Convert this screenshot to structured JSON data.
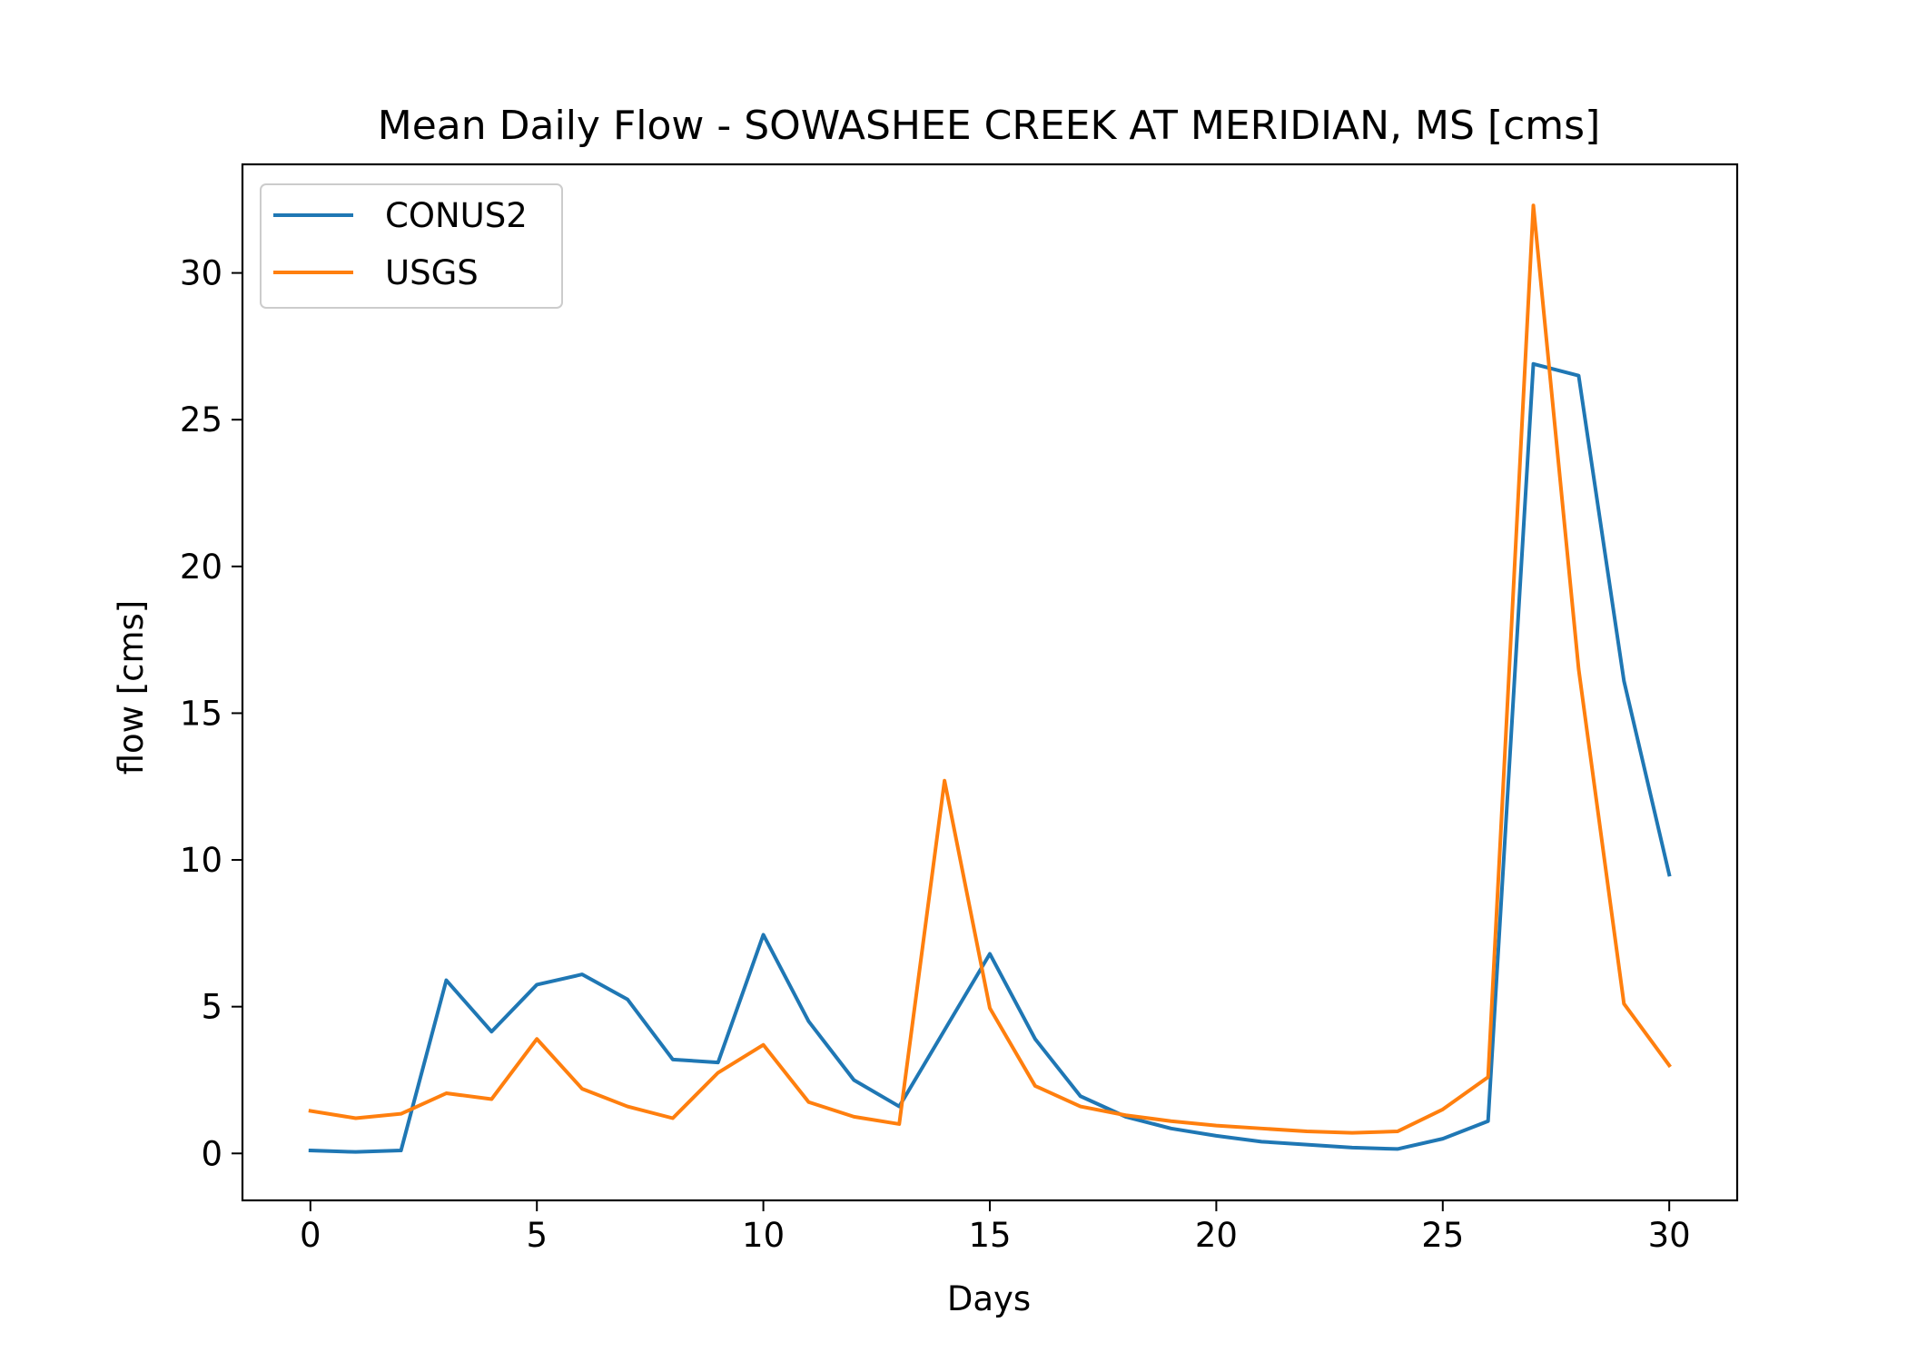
{
  "chart_data": {
    "type": "line",
    "title": "Mean Daily Flow - SOWASHEE CREEK AT MERIDIAN, MS [cms]",
    "xlabel": "Days",
    "ylabel": "flow [cms]",
    "xlim": [
      -1.5,
      31.5
    ],
    "ylim": [
      -1.6,
      33.7
    ],
    "xticks": [
      0,
      5,
      10,
      15,
      20,
      25,
      30
    ],
    "yticks": [
      0,
      5,
      10,
      15,
      20,
      25,
      30
    ],
    "grid": false,
    "legend_position": "upper-left",
    "x": [
      0,
      1,
      2,
      3,
      4,
      5,
      6,
      7,
      8,
      9,
      10,
      11,
      12,
      13,
      14,
      15,
      16,
      17,
      18,
      19,
      20,
      21,
      22,
      23,
      24,
      25,
      26,
      27,
      28,
      29,
      30
    ],
    "series": [
      {
        "name": "CONUS2",
        "color": "#1f77b4",
        "values": [
          0.1,
          0.05,
          0.1,
          5.9,
          4.15,
          5.75,
          6.1,
          5.25,
          3.2,
          3.1,
          7.45,
          4.5,
          2.5,
          1.6,
          4.2,
          6.8,
          3.9,
          1.95,
          1.25,
          0.85,
          0.6,
          0.4,
          0.3,
          0.2,
          0.15,
          0.5,
          1.1,
          26.9,
          26.5,
          16.1,
          9.5
        ]
      },
      {
        "name": "USGS",
        "color": "#ff7f0e",
        "values": [
          1.45,
          1.2,
          1.35,
          2.05,
          1.85,
          3.9,
          2.2,
          1.6,
          1.2,
          2.75,
          3.7,
          1.75,
          1.25,
          1.0,
          12.7,
          4.95,
          2.3,
          1.6,
          1.3,
          1.1,
          0.95,
          0.85,
          0.75,
          0.7,
          0.75,
          1.5,
          2.6,
          32.3,
          16.5,
          5.1,
          3.0
        ]
      }
    ]
  }
}
